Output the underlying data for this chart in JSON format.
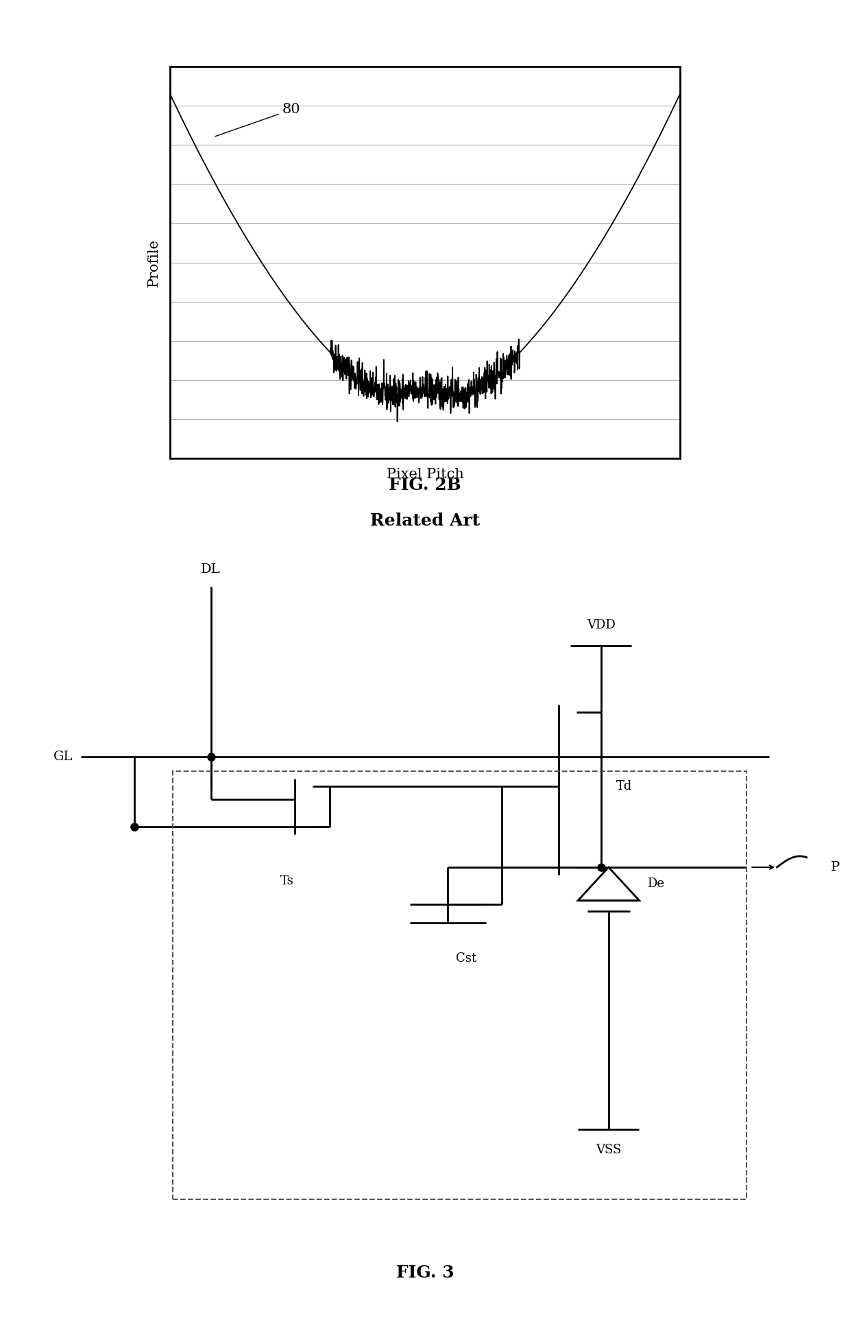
{
  "fig2b_title": "FIG. 2B",
  "fig2b_subtitle": "Related Art",
  "fig3_title": "FIG. 3",
  "graph_xlabel": "Pixel Pitch",
  "graph_ylabel": "Profile",
  "label_80": "80",
  "label_DL": "DL",
  "label_GL": "GL",
  "label_Ts": "Ts",
  "label_Td": "Td",
  "label_Cst": "Cst",
  "label_De": "De",
  "label_VDD": "VDD",
  "label_VSS": "VSS",
  "label_P": "P",
  "bg_color": "#ffffff",
  "line_color": "#000000",
  "grid_color": "#b0b0b0",
  "dashed_color": "#555555"
}
